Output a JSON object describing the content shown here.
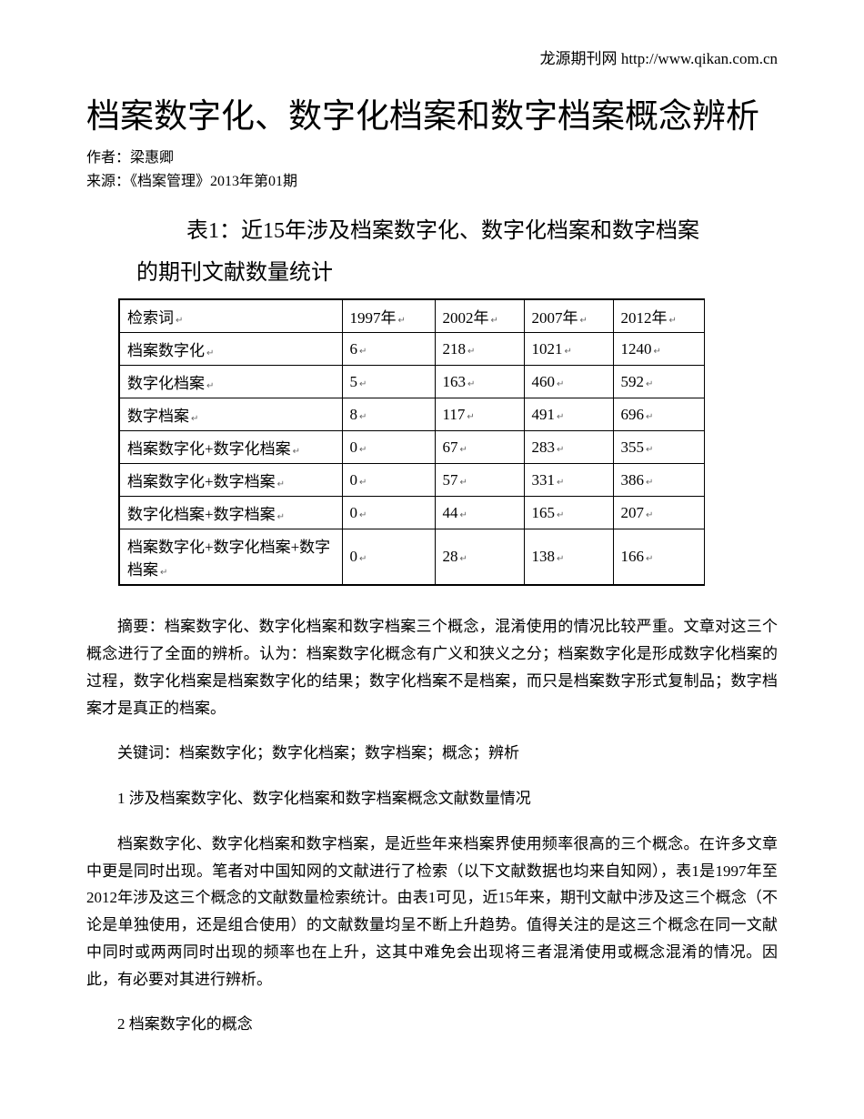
{
  "header": {
    "site_name": "龙源期刊网",
    "url": "http://www.qikan.com.cn"
  },
  "title": "档案数字化、数字化档案和数字档案概念辨析",
  "author_label": "作者：",
  "author": "梁惠卿",
  "source_label": "来源：",
  "source": "《档案管理》2013年第01期",
  "table": {
    "caption_line1": "表1：近15年涉及档案数字化、数字化档案和数字档案",
    "caption_line2": "的期刊文献数量统计",
    "headers": [
      "检索词",
      "1997年",
      "2002年",
      "2007年",
      "2012年"
    ],
    "rows": [
      [
        "档案数字化",
        "6",
        "218",
        "1021",
        "1240"
      ],
      [
        "数字化档案",
        "5",
        "163",
        "460",
        "592"
      ],
      [
        "数字档案",
        "8",
        "117",
        "491",
        "696"
      ],
      [
        "档案数字化+数字化档案",
        "0",
        "67",
        "283",
        "355"
      ],
      [
        "档案数字化+数字档案",
        "0",
        "57",
        "331",
        "386"
      ],
      [
        "数字化档案+数字档案",
        "0",
        "44",
        "165",
        "207"
      ],
      [
        "档案数字化+数字化档案+数字档案",
        "0",
        "28",
        "138",
        "166"
      ]
    ]
  },
  "abstract": "摘要：档案数字化、数字化档案和数字档案三个概念，混淆使用的情况比较严重。文章对这三个概念进行了全面的辨析。认为：档案数字化概念有广义和狭义之分；档案数字化是形成数字化档案的过程，数字化档案是档案数字化的结果；数字化档案不是档案，而只是档案数字形式复制品；数字档案才是真正的档案。",
  "keywords": "关键词：档案数字化；数字化档案；数字档案；概念；辨析",
  "section1_heading": "1 涉及档案数字化、数字化档案和数字档案概念文献数量情况",
  "section1_body": "档案数字化、数字化档案和数字档案，是近些年来档案界使用频率很高的三个概念。在许多文章中更是同时出现。笔者对中国知网的文献进行了检索（以下文献数据也均来自知网），表1是1997年至2012年涉及这三个概念的文献数量检索统计。由表1可见，近15年来，期刊文献中涉及这三个概念（不论是单独使用，还是组合使用）的文献数量均呈不断上升趋势。值得关注的是这三个概念在同一文献中同时或两两同时出现的频率也在上升，这其中难免会出现将三者混淆使用或概念混淆的情况。因此，有必要对其进行辨析。",
  "section2_heading": "2 档案数字化的概念",
  "enter_symbol": "↵"
}
